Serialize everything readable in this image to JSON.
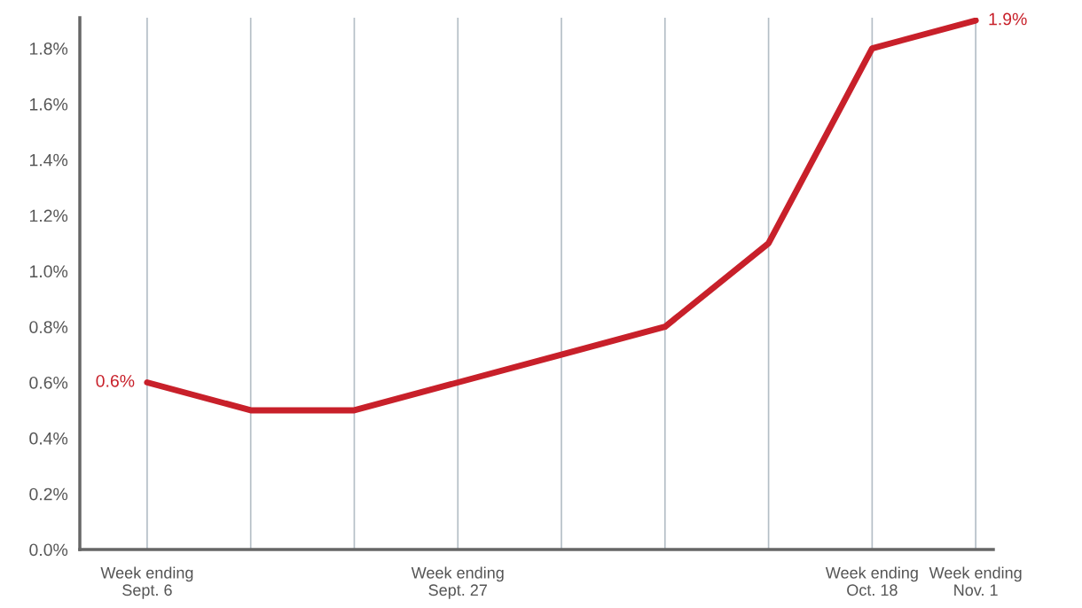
{
  "chart_data": {
    "type": "line",
    "categories": [
      "Week ending Sept. 6",
      null,
      null,
      "Week ending Sept. 27",
      null,
      null,
      null,
      "Week ending Oct. 18",
      "Week ending Nov. 1"
    ],
    "series": [
      {
        "color": "#c8202a",
        "values": [
          0.6,
          0.5,
          0.5,
          0.6,
          0.7,
          0.8,
          1.1,
          1.8,
          1.9
        ],
        "value_labels": [
          "0.6%",
          null,
          null,
          null,
          null,
          null,
          null,
          null,
          "1.9%"
        ]
      }
    ],
    "ylim": [
      0,
      1.91
    ],
    "yticks": [
      {
        "value": 0,
        "label": "0.0%"
      },
      {
        "value": 0.2,
        "label": "0.2%"
      },
      {
        "value": 0.4,
        "label": "0.4%"
      },
      {
        "value": 0.6,
        "label": "0.6%"
      },
      {
        "value": 0.8,
        "label": "0.8%"
      },
      {
        "value": 1.0,
        "label": "1.0%"
      },
      {
        "value": 1.2,
        "label": "1.2%"
      },
      {
        "value": 1.4,
        "label": "1.4%"
      },
      {
        "value": 1.6,
        "label": "1.6%"
      },
      {
        "value": 1.8,
        "label": "1.8%"
      }
    ],
    "grid": "x",
    "legend": false,
    "marker": "none",
    "line_style": "solid"
  }
}
